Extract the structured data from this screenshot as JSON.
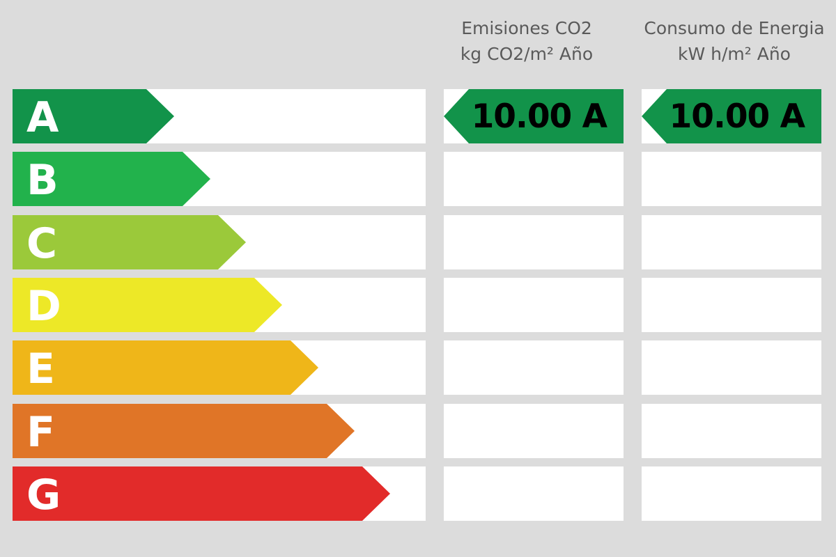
{
  "headers": {
    "co2": {
      "line1": "Emisiones CO2",
      "line2": "kg CO2/m² Año"
    },
    "energy": {
      "line1": "Consumo de Energia",
      "line2": "kW h/m² Año"
    }
  },
  "classes": [
    {
      "letter": "A",
      "color": "#12934a"
    },
    {
      "letter": "B",
      "color": "#22b24c"
    },
    {
      "letter": "C",
      "color": "#9bc93a"
    },
    {
      "letter": "D",
      "color": "#ede827"
    },
    {
      "letter": "E",
      "color": "#efb619"
    },
    {
      "letter": "F",
      "color": "#e07527"
    },
    {
      "letter": "G",
      "color": "#e22b2a"
    }
  ],
  "ratings": {
    "co2": {
      "value": "10.00",
      "class": "A"
    },
    "energy": {
      "value": "10.00",
      "class": "A"
    }
  }
}
